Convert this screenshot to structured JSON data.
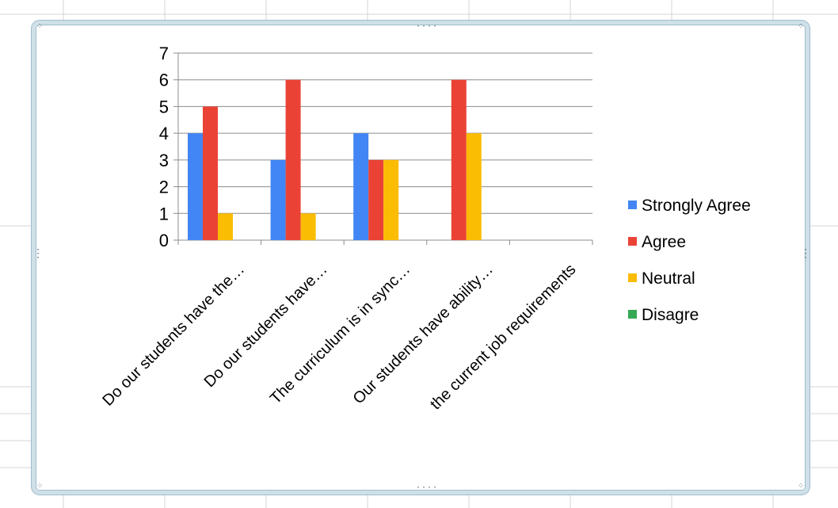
{
  "chart_data": {
    "type": "bar",
    "title": "",
    "xlabel": "",
    "ylabel": "",
    "ylim": [
      0,
      7
    ],
    "yticks": [
      "0",
      "1",
      "2",
      "3",
      "4",
      "5",
      "6",
      "7"
    ],
    "grid": true,
    "legend_position": "right",
    "categories": [
      "Do our students have the…",
      "Do our students have…",
      "The curriculum is in sync…",
      "Our students have ability…",
      "the current job requirements"
    ],
    "series": [
      {
        "name": "Strongly Agree",
        "color": "#4285f4",
        "values": [
          4,
          3,
          4,
          0,
          0
        ]
      },
      {
        "name": "Agree",
        "color": "#ea4335",
        "values": [
          5,
          6,
          3,
          6,
          0
        ]
      },
      {
        "name": "Neutral",
        "color": "#fbbc04",
        "values": [
          1,
          1,
          3,
          4,
          0
        ]
      },
      {
        "name": "Disagre",
        "color": "#34a853",
        "values": [
          0,
          0,
          0,
          0,
          0
        ]
      }
    ]
  },
  "colors": {
    "gridline": "#8c8c8c",
    "axis": "#8c8c8c",
    "sheet_line": "#d4d4d4",
    "frame": "#cfe0e8"
  },
  "grips": {
    "top": "····",
    "bottom": "····",
    "left": "⋮",
    "right": "⋮"
  }
}
